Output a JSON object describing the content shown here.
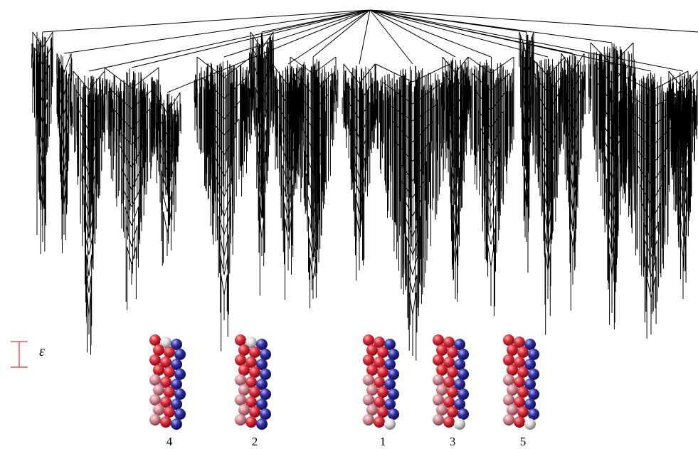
{
  "scale": {
    "label": "ε"
  },
  "structures": [
    {
      "label": "4"
    },
    {
      "label": "2"
    },
    {
      "label": "1"
    },
    {
      "label": "3"
    },
    {
      "label": "5"
    }
  ]
}
